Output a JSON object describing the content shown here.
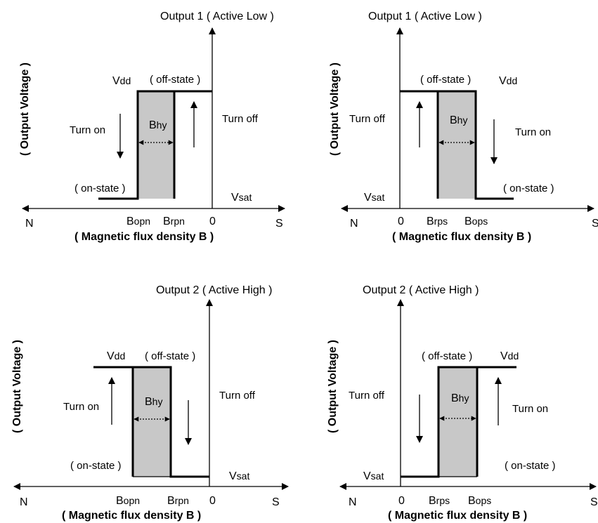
{
  "diagrams": [
    {
      "title": "Output 1 ( Active Low )",
      "ylabel": "( Output Voltage )",
      "xlabel": "( Magnetic flux density B )",
      "axis_left": "N",
      "axis_right": "S",
      "tick_1": "B",
      "tick_1_sub": "opn",
      "tick_2": "B",
      "tick_2_sub": "rpn",
      "tick_3": "0",
      "off_state": "( off-state )",
      "on_state": "( on-state )",
      "vdd": "V",
      "vdd_sub": "dd",
      "vsat": "V",
      "vsat_sub": "sat",
      "turn_on": "Turn on",
      "turn_off": "Turn off",
      "bhy": "B",
      "bhy_sub": "hy"
    },
    {
      "title": "Output 1 ( Active Low )",
      "ylabel": "( Output Voltage )",
      "xlabel": "( Magnetic flux density B )",
      "axis_left": "N",
      "axis_right": "S",
      "tick_1": "0",
      "tick_2": "B",
      "tick_2_sub": "rps",
      "tick_3": "B",
      "tick_3_sub": "ops",
      "off_state": "( off-state )",
      "on_state": "( on-state )",
      "vdd": "V",
      "vdd_sub": "dd",
      "vsat": "V",
      "vsat_sub": "sat",
      "turn_on": "Turn on",
      "turn_off": "Turn off",
      "bhy": "B",
      "bhy_sub": "hy"
    },
    {
      "title": "Output 2 ( Active High )",
      "ylabel": "( Output Voltage )",
      "xlabel": "( Magnetic flux density B )",
      "axis_left": "N",
      "axis_right": "S",
      "tick_1": "B",
      "tick_1_sub": "opn",
      "tick_2": "B",
      "tick_2_sub": "rpn",
      "tick_3": "0",
      "off_state": "( off-state )",
      "on_state": "( on-state )",
      "vdd": "V",
      "vdd_sub": "dd",
      "vsat": "V",
      "vsat_sub": "sat",
      "turn_on": "Turn on",
      "turn_off": "Turn off",
      "bhy": "B",
      "bhy_sub": "hy"
    },
    {
      "title": "Output 2 ( Active High )",
      "ylabel": "( Output Voltage )",
      "xlabel": "( Magnetic flux density B )",
      "axis_left": "N",
      "axis_right": "S",
      "tick_1": "0",
      "tick_2": "B",
      "tick_2_sub": "rps",
      "tick_3": "B",
      "tick_3_sub": "ops",
      "off_state": "( off-state )",
      "on_state": "( on-state )",
      "vdd": "V",
      "vdd_sub": "dd",
      "vsat": "V",
      "vsat_sub": "sat",
      "turn_on": "Turn on",
      "turn_off": "Turn off",
      "bhy": "B",
      "bhy_sub": "hy"
    }
  ]
}
